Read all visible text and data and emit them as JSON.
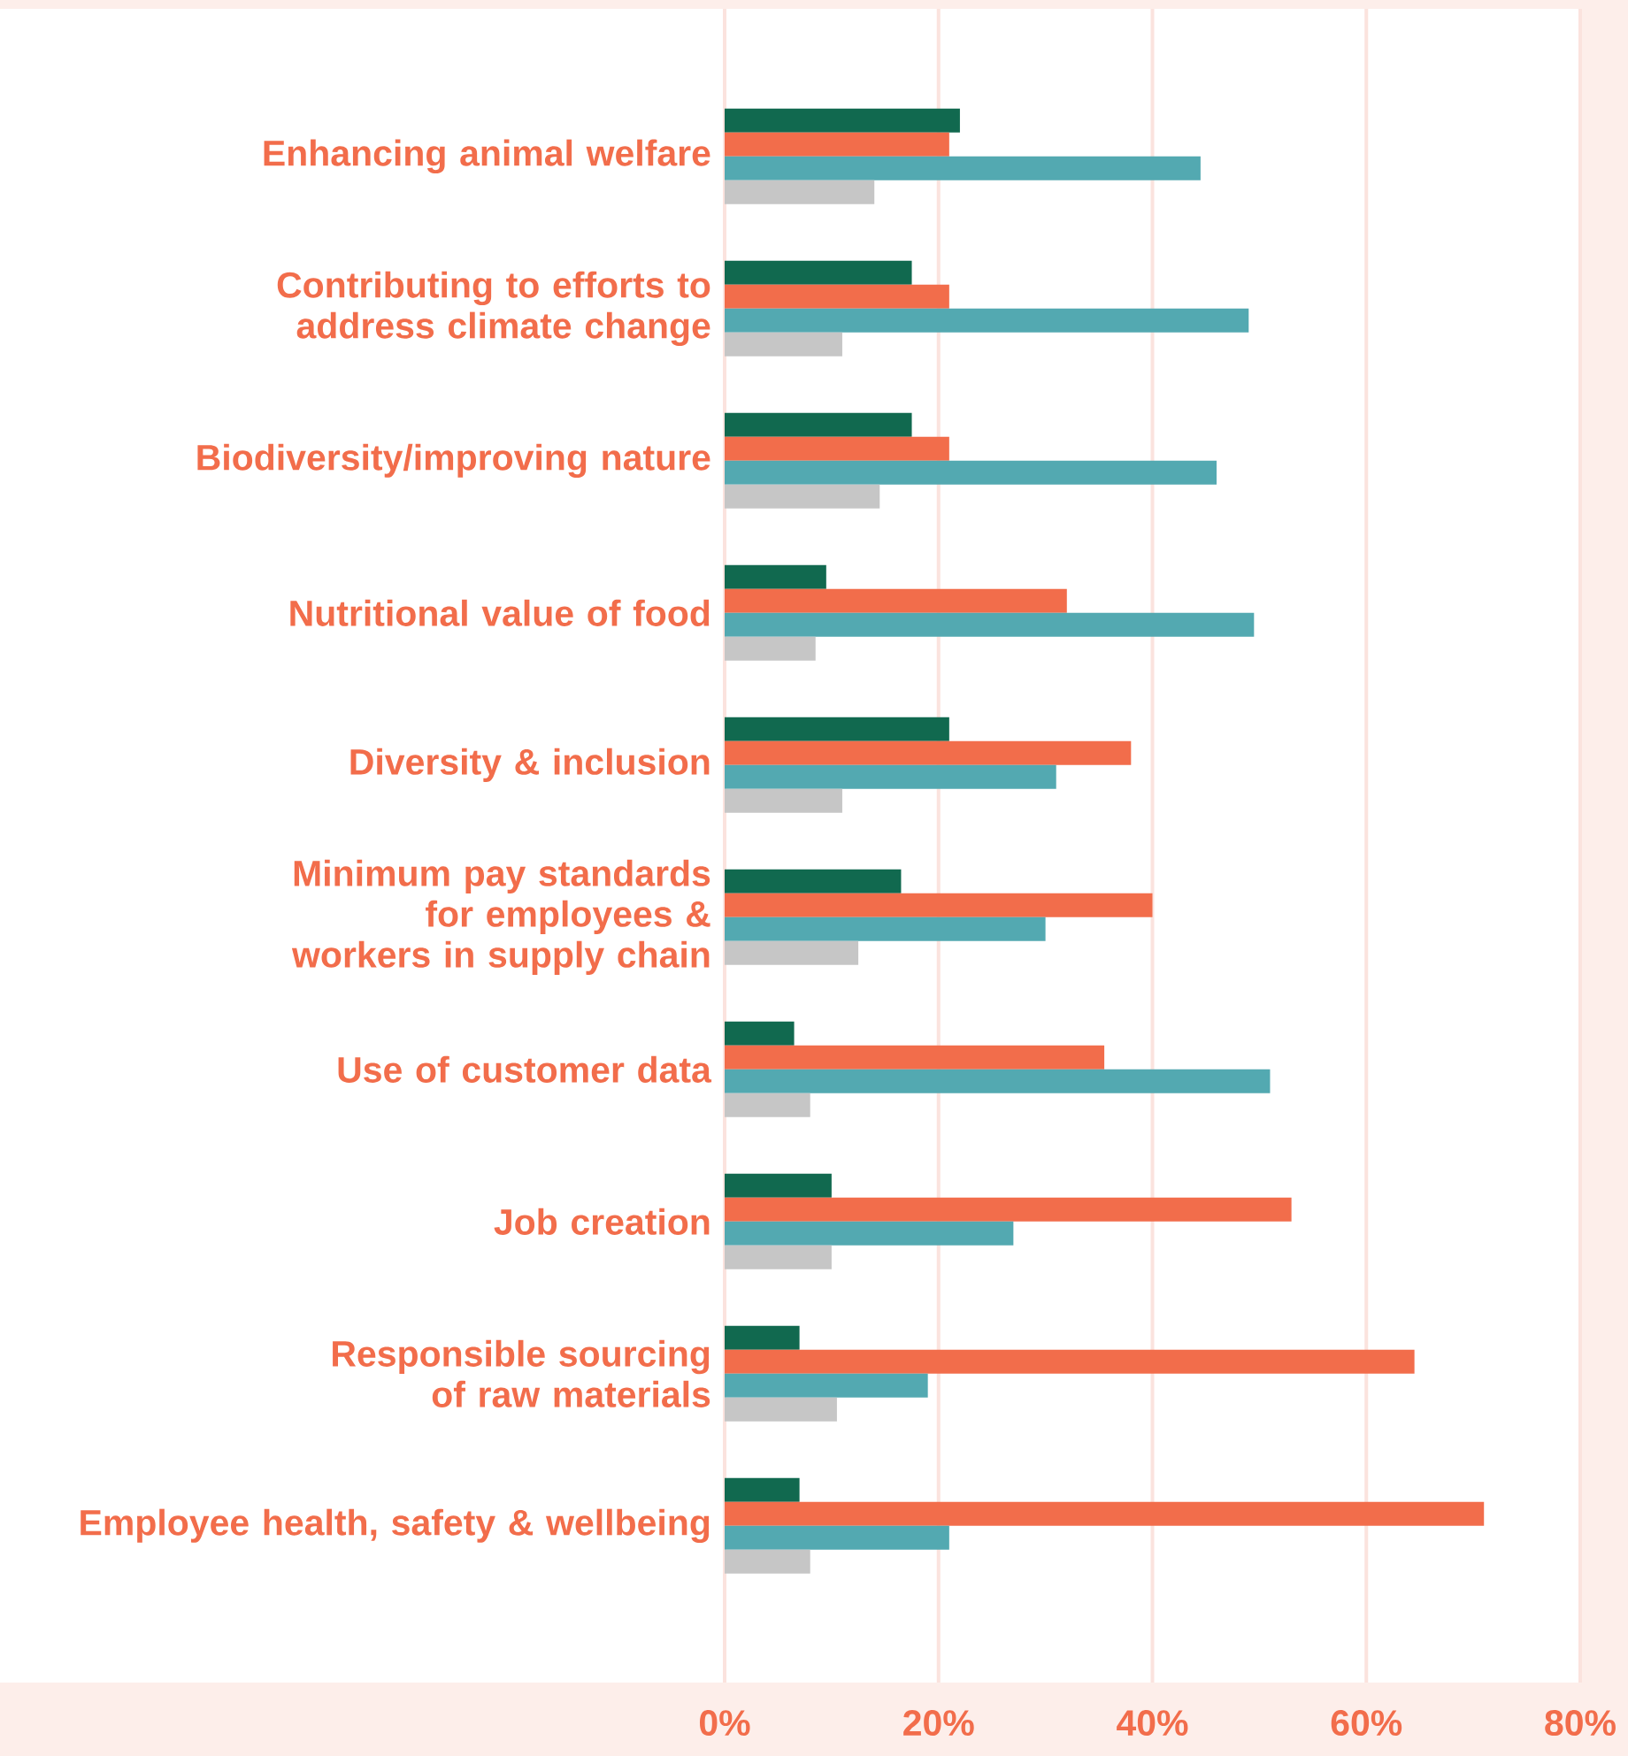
{
  "chart_data": {
    "type": "bar",
    "orientation": "horizontal",
    "categories": [
      "Enhancing animal welfare",
      "Contributing to efforts to address climate change",
      "Biodiversity/improving nature",
      "Nutritional value of food",
      "Diversity & inclusion",
      "Minimum pay standards for employees & workers in supply chain",
      "Use of customer data",
      "Job creation",
      "Responsible sourcing of raw materials",
      "Employee health, safety & wellbeing"
    ],
    "series": [
      {
        "color": "#11694f",
        "values": [
          22,
          17.5,
          17.5,
          9.5,
          21,
          16.5,
          6.5,
          10,
          7,
          7
        ]
      },
      {
        "color": "#f26d4b",
        "values": [
          21,
          21,
          21,
          32,
          38,
          40,
          35.5,
          53,
          64.5,
          71
        ]
      },
      {
        "color": "#53a9b1",
        "values": [
          44.5,
          49,
          46,
          49.5,
          31,
          30,
          51,
          27,
          19,
          21
        ]
      },
      {
        "color": "#c6c6c6",
        "values": [
          14,
          11,
          14.5,
          8.5,
          11,
          12.5,
          8,
          10,
          10.5,
          8
        ]
      }
    ],
    "xlim": [
      0,
      80
    ],
    "xticks": [
      {
        "value": 0,
        "label": "0%"
      },
      {
        "value": 20,
        "label": "20%"
      },
      {
        "value": 40,
        "label": "40%"
      },
      {
        "value": 60,
        "label": "60%"
      },
      {
        "value": 80,
        "label": "80%"
      }
    ],
    "grid": "x"
  }
}
